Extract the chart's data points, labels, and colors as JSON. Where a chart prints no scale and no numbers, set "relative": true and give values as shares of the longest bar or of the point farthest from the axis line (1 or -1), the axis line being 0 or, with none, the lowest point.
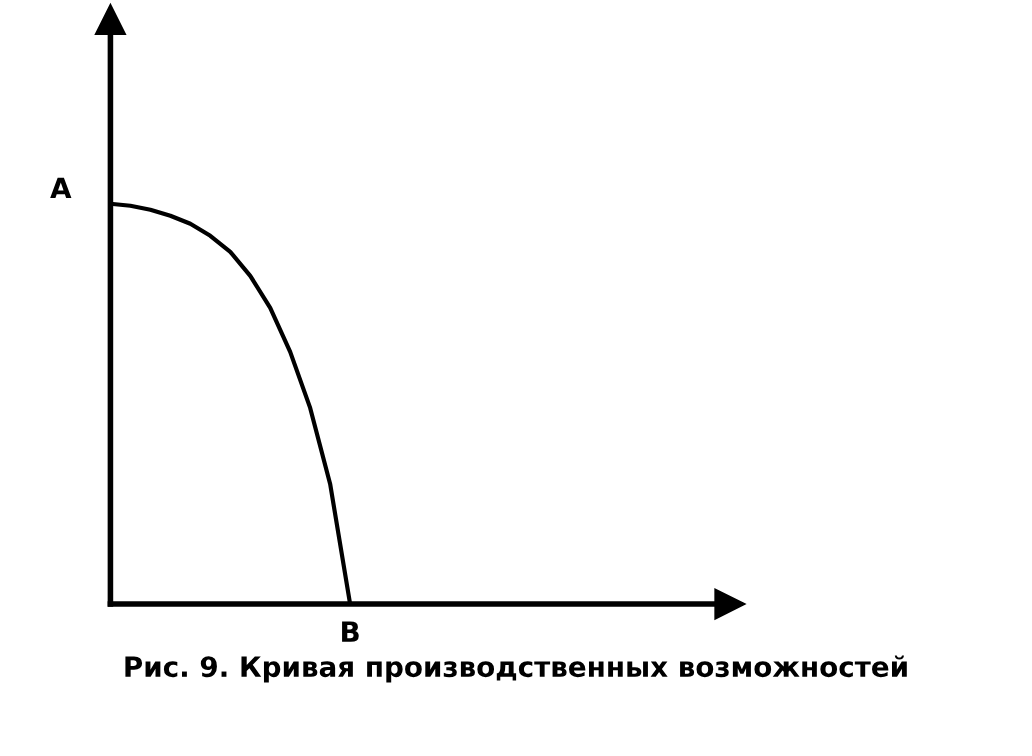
{
  "chart_data": {
    "type": "line",
    "relative": true,
    "color": "#000000",
    "categories": [
      null,
      null,
      null,
      null,
      null,
      null,
      null,
      null,
      null,
      null,
      null,
      null,
      null,
      null,
      null,
      null,
      null,
      null,
      null,
      null,
      null,
      null,
      null,
      null,
      null,
      null,
      null,
      null,
      null,
      null,
      null
    ],
    "values": [
      1.0,
      0.995,
      0.985,
      0.97,
      0.95,
      0.92,
      0.88,
      0.82,
      0.74,
      0.63,
      0.49,
      0.3,
      0.0,
      null,
      null,
      null,
      null,
      null,
      null,
      null,
      null,
      null,
      null,
      null,
      null,
      null,
      null,
      null,
      null,
      null,
      null
    ],
    "annotations": [
      "A",
      "B",
      "Рис. 9. Кривая производственных возможностей"
    ],
    "grid": false,
    "legend": false,
    "marker": "none",
    "line_style": "solid"
  }
}
